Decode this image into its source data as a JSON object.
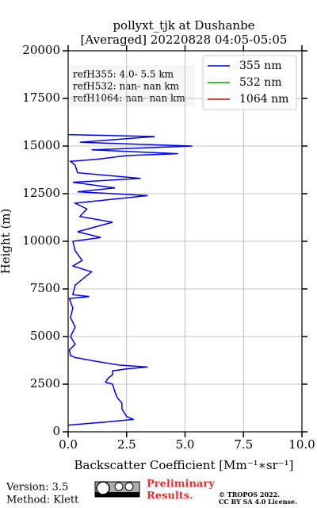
{
  "chart_data": {
    "type": "line",
    "title": [
      "pollyxt_tjk at Dushanbe",
      "[Averaged] 20220828 04:05-05:05"
    ],
    "xlabel": "Backscatter Coefficient [Mm⁻¹∗sr⁻¹]",
    "ylabel": "Height (m)",
    "xlim": [
      0,
      10
    ],
    "xticks": [
      {
        "value": 0,
        "label": "0.0"
      },
      {
        "value": 2.5,
        "label": "2.5"
      },
      {
        "value": 5,
        "label": "5.0"
      },
      {
        "value": 7.5,
        "label": "7.5"
      },
      {
        "value": 10,
        "label": "10.0"
      }
    ],
    "ylim": [
      0,
      20000
    ],
    "yticks": [
      0,
      2500,
      5000,
      7500,
      10000,
      12500,
      15000,
      17500,
      20000
    ],
    "grid": true,
    "legend": "upper right",
    "heights": [
      350,
      500,
      650,
      800,
      1200,
      1500,
      1800,
      2100,
      2500,
      2600,
      2800,
      3000,
      3200,
      3300,
      3400,
      3500,
      3700,
      3900,
      4000,
      4300,
      4600,
      5000,
      5500,
      6000,
      6500,
      7000,
      7100,
      7200,
      7700,
      8200,
      8400,
      8700,
      9000,
      9500,
      10000,
      10200,
      10500,
      11000,
      11300,
      11700,
      12000,
      12400,
      12600,
      12800,
      13100,
      13300,
      13600,
      14000,
      14200,
      14300,
      14500,
      14600,
      14800,
      15000,
      15200,
      15300,
      15500,
      15600
    ],
    "series": [
      {
        "name": "355 nm",
        "color": "#0000ff",
        "values": [
          0,
          1.5,
          2.8,
          2.5,
          2.3,
          2.3,
          2.1,
          2.0,
          1.9,
          1.6,
          1.7,
          1.9,
          1.9,
          2.5,
          3.4,
          2.2,
          1.2,
          0.3,
          0.1,
          0.05,
          0.3,
          0.1,
          0.3,
          0.1,
          0.2,
          0.05,
          0.9,
          0.2,
          0.3,
          0.8,
          1.0,
          0.2,
          0.6,
          0.3,
          0.2,
          1.4,
          0.4,
          1.9,
          0.5,
          0.8,
          0.3,
          3.4,
          0.4,
          2.0,
          0.2,
          3.1,
          0.4,
          0.3,
          0.1,
          1.2,
          2.5,
          4.7,
          1.0,
          5.3,
          0.5,
          1.6,
          3.7,
          0
        ]
      },
      {
        "name": "532 nm",
        "color": "#00b000",
        "values": [
          null,
          null,
          null,
          null,
          null,
          null,
          null,
          null,
          null,
          null,
          null,
          null,
          null,
          null,
          null,
          null,
          null,
          null,
          null,
          null,
          null,
          null,
          null,
          null,
          null,
          null,
          null,
          null,
          null,
          null,
          null,
          null,
          null,
          null,
          null,
          null,
          null,
          null,
          null,
          null,
          null,
          null,
          null,
          null,
          null,
          null,
          null,
          null,
          null,
          null,
          null,
          null,
          null,
          null,
          null,
          null,
          null,
          null
        ]
      },
      {
        "name": "1064 nm",
        "color": "#e00000",
        "values": [
          null,
          null,
          null,
          null,
          null,
          null,
          null,
          null,
          null,
          null,
          null,
          null,
          null,
          null,
          null,
          null,
          null,
          null,
          null,
          null,
          null,
          null,
          null,
          null,
          null,
          null,
          null,
          null,
          null,
          null,
          null,
          null,
          null,
          null,
          null,
          null,
          null,
          null,
          null,
          null,
          null,
          null,
          null,
          null,
          null,
          null,
          null,
          null,
          null,
          null,
          null,
          null,
          null,
          null,
          null,
          null,
          null,
          null
        ]
      }
    ],
    "annotations": [
      "refH355:  4.0- 5.5 km",
      "refH532:  nan- nan km",
      "refH1064:  nan- nan km"
    ]
  },
  "footer": {
    "version": "Version: 3.5",
    "method": "Method: Klett",
    "preliminary": [
      "Preliminary",
      "Results."
    ],
    "copyright": [
      "© TROPOS 2022.",
      "CC BY SA 4.0 License."
    ]
  }
}
